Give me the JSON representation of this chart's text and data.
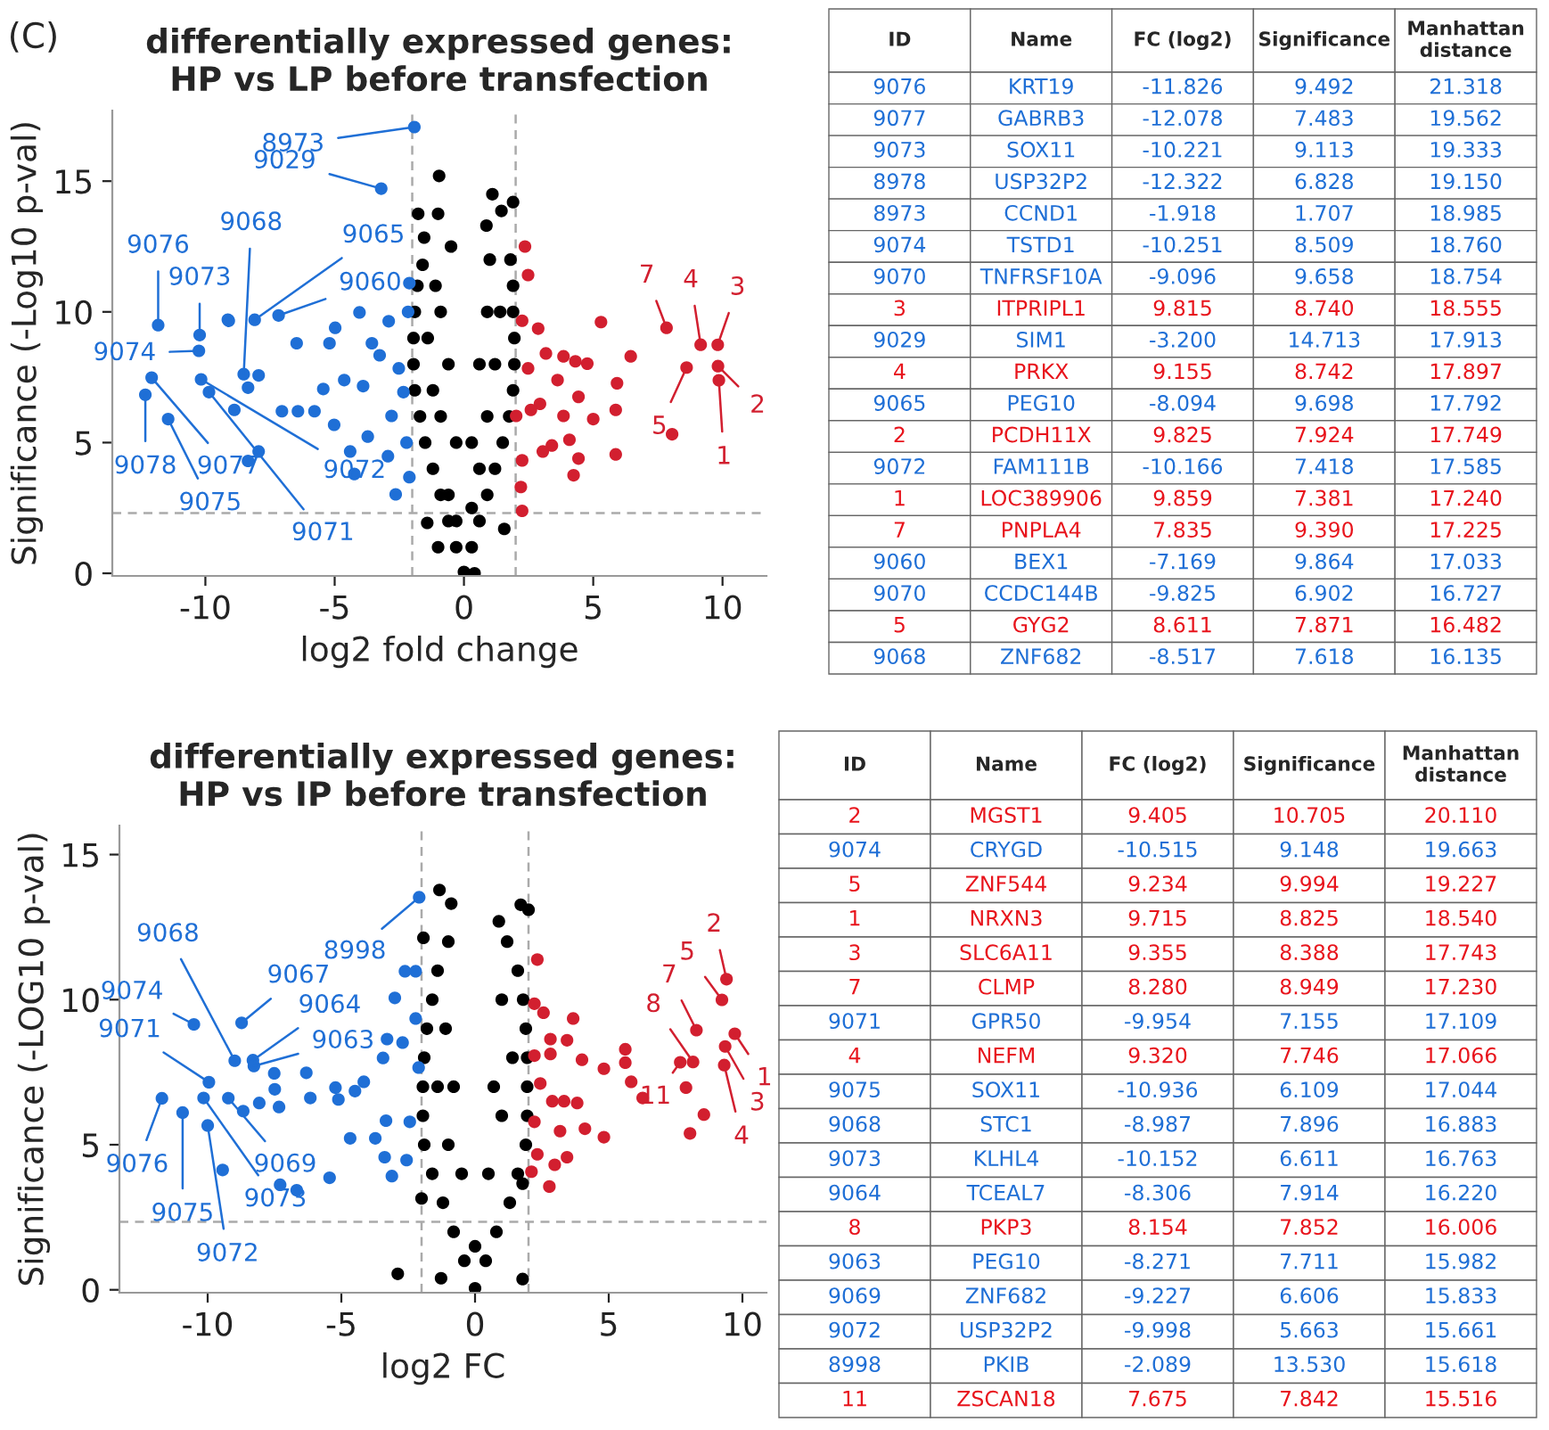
{
  "chart_data": [
    {
      "type": "scatter",
      "title": "differentially expressed genes:\nHP vs LP before transfection",
      "xlabel": "log2 fold change",
      "ylabel": "Significance (-Log10 p-val)",
      "xlim": [
        -13.6,
        11.7
      ],
      "ylim": [
        -0.1,
        17.7
      ],
      "xticks": [
        -10,
        -5,
        0,
        5,
        10
      ],
      "yticks": [
        0,
        5,
        10,
        15
      ],
      "marker": "circle",
      "grid": false,
      "legend": false,
      "ref_lines": [
        {
          "axis": "x",
          "value": -2,
          "color": "#aaaaaa",
          "line_style": "dashed"
        },
        {
          "axis": "x",
          "value": 2,
          "color": "#aaaaaa",
          "line_style": "dashed"
        },
        {
          "axis": "y",
          "value": 2.3,
          "color": "#aaaaaa",
          "line_style": "dashed"
        }
      ],
      "series": [
        {
          "color": "#1f6fd6",
          "x": [
            -11.826,
            -12.078,
            -10.221,
            -12.322,
            -1.918,
            -10.251,
            -9.096,
            -3.2,
            -8.094,
            -10.166,
            -7.169,
            -9.86,
            -8.517,
            -11.44,
            -8.35,
            -9.13,
            -8.35,
            -8.88,
            -7.94,
            -7.94,
            -7.04,
            -6.47,
            -6.42,
            -5.78,
            -5.44,
            -5.2,
            -4.98,
            -5.02,
            -4.63,
            -4.4,
            -4.24,
            -4.04,
            -3.9,
            -3.72,
            -3.56,
            -3.26,
            -2.91,
            -2.94,
            -2.64,
            -2.8,
            -2.52,
            -2.11,
            -2.16,
            -2.11,
            -2.22,
            -2.34
          ],
          "values": [
            9.492,
            7.483,
            9.113,
            6.828,
            17.07,
            8.509,
            9.658,
            14.713,
            9.698,
            7.418,
            9.864,
            6.93,
            7.618,
            5.9,
            4.3,
            9.7,
            7.1,
            6.25,
            7.57,
            4.66,
            6.2,
            8.8,
            6.2,
            6.2,
            7.05,
            8.8,
            9.39,
            5.68,
            7.39,
            4.66,
            3.8,
            9.98,
            7.16,
            5.23,
            8.8,
            8.34,
            9.64,
            4.48,
            3.02,
            6.02,
            7.84,
            11.1,
            10.0,
            3.68,
            5.0,
            6.93
          ]
        },
        {
          "color": "#d21f2f",
          "x": [
            7.835,
            9.155,
            9.815,
            8.611,
            9.825,
            9.859,
            5.3,
            6.45,
            5.92,
            5.87,
            5.87,
            8.05,
            5.0,
            4.77,
            4.31,
            3.85,
            4.43,
            4.08,
            4.43,
            4.24,
            3.17,
            2.87,
            2.48,
            2.36,
            2.25,
            2.48,
            2.94,
            3.4,
            3.05,
            2.25,
            2.2,
            2.25,
            3.62,
            2.02,
            2.59,
            3.85
          ],
          "values": [
            9.39,
            8.742,
            8.74,
            7.871,
            7.924,
            7.381,
            9.61,
            8.3,
            7.27,
            6.25,
            4.55,
            5.32,
            5.9,
            8.02,
            8.11,
            8.3,
            6.75,
            5.11,
            4.39,
            3.75,
            8.41,
            9.36,
            11.41,
            12.5,
            9.66,
            7.84,
            6.48,
            4.89,
            4.66,
            4.32,
            3.3,
            2.39,
            7.39,
            6.02,
            6.25,
            6.02
          ]
        },
        {
          "color": "#000000",
          "x": [
            0,
            -0.3,
            0.3,
            -0.6,
            0.6,
            -0.9,
            0.9,
            -1.2,
            1.2,
            -1.5,
            1.5,
            -1.7,
            1.75,
            -1.9,
            1.9,
            -1.95,
            1.95,
            -1.95,
            1.95,
            -1.9,
            1.9,
            -1.8,
            1.9,
            -1.6,
            1.8,
            -0.6,
            0.6,
            -0.3,
            0.3,
            -0.6,
            0.6,
            -0.9,
            0.9,
            -1.1,
            1.0,
            -1.2,
            -0.9,
            1.2,
            1.4,
            -1.4,
            0.9,
            -0.3,
            0.3,
            -1.0,
            -0.96,
            -1.77,
            -1.0,
            -1.54,
            -0.5,
            1.1,
            1.9,
            1.45,
            0.87,
            1.56,
            -1.42,
            0.41
          ],
          "values": [
            0.05,
            1,
            1,
            2,
            2,
            3,
            3,
            4,
            4,
            5,
            5,
            6,
            6,
            7,
            7,
            8,
            8,
            9,
            9,
            10,
            10,
            11,
            11,
            11.8,
            12,
            3,
            4,
            5,
            5,
            8,
            8,
            10,
            10,
            11,
            12,
            7,
            6,
            8,
            10,
            9,
            6,
            2,
            2.5,
            1.0,
            15.2,
            13.75,
            13.75,
            12.84,
            12.5,
            14.5,
            14.2,
            13.86,
            13.3,
            1.7,
            1.93,
            0.0
          ]
        }
      ],
      "annotations": [
        "(C)",
        {
          "text": "8973",
          "x": -1.918,
          "y": 17.07
        },
        {
          "text": "9029",
          "x": -3.2,
          "y": 14.713
        },
        {
          "text": "9065",
          "x": -8.094,
          "y": 9.698
        },
        {
          "text": "9060",
          "x": -7.169,
          "y": 9.864
        },
        {
          "text": "9076",
          "x": -11.826,
          "y": 9.492
        },
        {
          "text": "9073",
          "x": -10.221,
          "y": 9.113
        },
        {
          "text": "9074",
          "x": -10.251,
          "y": 8.509
        },
        {
          "text": "9068",
          "x": -8.517,
          "y": 7.618
        },
        {
          "text": "9078",
          "x": -12.322,
          "y": 6.828
        },
        {
          "text": "9077",
          "x": -12.078,
          "y": 7.483
        },
        {
          "text": "9075",
          "x": -11.44,
          "y": 5.9
        },
        {
          "text": "9072",
          "x": -10.166,
          "y": 7.418
        },
        {
          "text": "9071",
          "x": -9.86,
          "y": 6.93
        },
        {
          "text": "7",
          "x": 7.835,
          "y": 9.39
        },
        {
          "text": "4",
          "x": 9.155,
          "y": 8.742
        },
        {
          "text": "3",
          "x": 9.815,
          "y": 8.74
        },
        {
          "text": "5",
          "x": 8.611,
          "y": 7.871
        },
        {
          "text": "2",
          "x": 9.825,
          "y": 7.924
        },
        {
          "text": "1",
          "x": 9.859,
          "y": 7.381
        }
      ]
    },
    {
      "type": "other",
      "categories": [
        "ID",
        "Name",
        "FC (log2)",
        "Significance",
        "Manhattan\ndistance"
      ],
      "colors": [
        [
          "#1f6fd6",
          "#1f6fd6",
          "#1f6fd6",
          "#1f6fd6",
          "#1f6fd6"
        ],
        [
          "#1f6fd6",
          "#1f6fd6",
          "#1f6fd6",
          "#1f6fd6",
          "#1f6fd6"
        ],
        [
          "#1f6fd6",
          "#1f6fd6",
          "#1f6fd6",
          "#1f6fd6",
          "#1f6fd6"
        ],
        [
          "#1f6fd6",
          "#1f6fd6",
          "#1f6fd6",
          "#1f6fd6",
          "#1f6fd6"
        ],
        [
          "#1f6fd6",
          "#1f6fd6",
          "#1f6fd6",
          "#1f6fd6",
          "#1f6fd6"
        ],
        [
          "#1f6fd6",
          "#1f6fd6",
          "#1f6fd6",
          "#1f6fd6",
          "#1f6fd6"
        ],
        [
          "#1f6fd6",
          "#1f6fd6",
          "#1f6fd6",
          "#1f6fd6",
          "#1f6fd6"
        ],
        [
          "#e8141c",
          "#e8141c",
          "#e8141c",
          "#e8141c",
          "#e8141c"
        ],
        [
          "#1f6fd6",
          "#1f6fd6",
          "#1f6fd6",
          "#1f6fd6",
          "#1f6fd6"
        ],
        [
          "#e8141c",
          "#e8141c",
          "#e8141c",
          "#e8141c",
          "#e8141c"
        ],
        [
          "#1f6fd6",
          "#1f6fd6",
          "#1f6fd6",
          "#1f6fd6",
          "#1f6fd6"
        ],
        [
          "#e8141c",
          "#e8141c",
          "#e8141c",
          "#e8141c",
          "#e8141c"
        ],
        [
          "#1f6fd6",
          "#1f6fd6",
          "#1f6fd6",
          "#1f6fd6",
          "#1f6fd6"
        ],
        [
          "#e8141c",
          "#e8141c",
          "#e8141c",
          "#e8141c",
          "#e8141c"
        ],
        [
          "#e8141c",
          "#e8141c",
          "#e8141c",
          "#e8141c",
          "#e8141c"
        ],
        [
          "#1f6fd6",
          "#1f6fd6",
          "#1f6fd6",
          "#1f6fd6",
          "#1f6fd6"
        ],
        [
          "#1f6fd6",
          "#1f6fd6",
          "#1f6fd6",
          "#1f6fd6",
          "#1f6fd6"
        ],
        [
          "#e8141c",
          "#e8141c",
          "#e8141c",
          "#e8141c",
          "#e8141c"
        ],
        [
          "#1f6fd6",
          "#1f6fd6",
          "#1f6fd6",
          "#1f6fd6",
          "#1f6fd6"
        ]
      ],
      "cell_labels": [
        [
          "9076",
          "KRT19",
          "-11.826",
          "9.492",
          "21.318"
        ],
        [
          "9077",
          "GABRB3",
          "-12.078",
          "7.483",
          "19.562"
        ],
        [
          "9073",
          "SOX11",
          "-10.221",
          "9.113",
          "19.333"
        ],
        [
          "8978",
          "USP32P2",
          "-12.322",
          "6.828",
          "19.150"
        ],
        [
          "8973",
          "CCND1",
          "-1.918",
          "1.707",
          "18.985"
        ],
        [
          "9074",
          "TSTD1",
          "-10.251",
          "8.509",
          "18.760"
        ],
        [
          "9070",
          "TNFRSF10A",
          "-9.096",
          "9.658",
          "18.754"
        ],
        [
          "3",
          "ITPRIPL1",
          "9.815",
          "8.740",
          "18.555"
        ],
        [
          "9029",
          "SIM1",
          "-3.200",
          "14.713",
          "17.913"
        ],
        [
          "4",
          "PRKX",
          "9.155",
          "8.742",
          "17.897"
        ],
        [
          "9065",
          "PEG10",
          "-8.094",
          "9.698",
          "17.792"
        ],
        [
          "2",
          "PCDH11X",
          "9.825",
          "7.924",
          "17.749"
        ],
        [
          "9072",
          "FAM111B",
          "-10.166",
          "7.418",
          "17.585"
        ],
        [
          "1",
          "LOC389906",
          "9.859",
          "7.381",
          "17.240"
        ],
        [
          "7",
          "PNPLA4",
          "7.835",
          "9.390",
          "17.225"
        ],
        [
          "9060",
          "BEX1",
          "-7.169",
          "9.864",
          "17.033"
        ],
        [
          "9070",
          "CCDC144B",
          "-9.825",
          "6.902",
          "16.727"
        ],
        [
          "5",
          "GYG2",
          "8.611",
          "7.871",
          "16.482"
        ],
        [
          "9068",
          "ZNF682",
          "-8.517",
          "7.618",
          "16.135"
        ]
      ]
    },
    {
      "type": "scatter",
      "title": "differentially expressed genes:\nHP vs IP before transfection",
      "xlabel": "log2 FC",
      "ylabel": "Significance (-LOG10 p-val)",
      "xlim": [
        -13.3,
        10.9
      ],
      "ylim": [
        -0.1,
        16
      ],
      "xticks": [
        -10,
        -5,
        0,
        5,
        10
      ],
      "yticks": [
        0,
        5,
        10,
        15
      ],
      "marker": "circle",
      "grid": false,
      "legend": false,
      "ref_lines": [
        {
          "axis": "x",
          "value": -2,
          "color": "#aaaaaa",
          "line_style": "dashed"
        },
        {
          "axis": "x",
          "value": 2,
          "color": "#aaaaaa",
          "line_style": "dashed"
        },
        {
          "axis": "y",
          "value": 2.34,
          "color": "#aaaaaa",
          "line_style": "dashed"
        }
      ],
      "series": [
        {
          "color": "#1f6fd6",
          "x": [
            -2.089,
            -8.987,
            -8.73,
            -10.515,
            -8.306,
            -8.271,
            -9.954,
            -11.71,
            -9.227,
            -10.152,
            -10.936,
            -9.998,
            -9.44,
            -8.67,
            -8.07,
            -7.51,
            -7.49,
            -7.33,
            -7.29,
            -6.67,
            -6.31,
            -6.16,
            -5.44,
            -5.22,
            -5.11,
            -4.67,
            -4.49,
            -4.16,
            -3.73,
            -3.44,
            -3.33,
            -3.29,
            -3.11,
            -3.0,
            -2.71,
            -2.62,
            -2.44,
            -2.22,
            -2.22,
            -2.11,
            -2.56,
            -3.38
          ],
          "values": [
            13.53,
            7.896,
            9.2,
            9.148,
            7.914,
            7.711,
            7.155,
            6.6,
            6.606,
            6.611,
            6.109,
            5.663,
            4.13,
            6.16,
            6.44,
            7.46,
            6.91,
            6.3,
            3.62,
            3.43,
            7.48,
            6.61,
            3.86,
            6.97,
            6.56,
            5.22,
            6.85,
            7.17,
            5.22,
            7.99,
            5.83,
            8.64,
            3.92,
            10.06,
            8.52,
            10.98,
            5.79,
            10.98,
            9.35,
            7.66,
            4.47,
            4.57
          ]
        },
        {
          "color": "#d21f2f",
          "x": [
            9.405,
            9.234,
            9.715,
            9.355,
            8.28,
            9.32,
            8.154,
            7.675,
            3.67,
            5.62,
            5.62,
            5.84,
            6.27,
            4.82,
            4.82,
            7.89,
            8.04,
            8.56,
            4.0,
            3.44,
            2.82,
            2.82,
            2.33,
            2.22,
            2.56,
            2.22,
            2.44,
            2.89,
            3.33,
            3.82,
            4.11,
            3.18,
            3.44,
            2.98,
            2.78,
            2.11,
            2.22,
            2.33
          ],
          "values": [
            10.705,
            9.994,
            8.825,
            8.388,
            8.949,
            7.746,
            7.852,
            7.842,
            9.35,
            8.29,
            7.83,
            7.17,
            6.61,
            7.62,
            5.26,
            6.97,
            5.39,
            6.04,
            7.93,
            8.6,
            8.64,
            8.13,
            11.38,
            9.86,
            9.55,
            8.07,
            7.11,
            6.5,
            6.5,
            6.44,
            5.55,
            5.47,
            4.57,
            4.31,
            3.56,
            4.07,
            5.79,
            4.67
          ]
        },
        {
          "color": "#000000",
          "x": [
            0,
            -0.4,
            0.4,
            -0.8,
            0.8,
            -1.2,
            1.3,
            -1.6,
            1.6,
            -1.9,
            1.9,
            -1.95,
            1.95,
            -1.95,
            1.95,
            -1.9,
            1.95,
            -1.8,
            1.9,
            -1.6,
            1.8,
            -1.4,
            1.6,
            -1.0,
            1.2,
            -0.5,
            0.5,
            -0.8,
            0.7,
            -1.1,
            1.0,
            -1.0,
            1.0,
            -1.4,
            1.4,
            0,
            -1.33,
            -0.89,
            -1.93,
            1.71,
            2.0,
            0.89,
            1.78,
            -2.89,
            -1.27,
            -2.0,
            1.78
          ],
          "values": [
            0.05,
            1,
            1,
            2,
            2,
            3,
            3,
            4,
            4,
            5,
            5,
            6,
            6,
            7,
            7,
            8,
            8,
            9,
            9,
            10,
            10,
            11,
            11,
            12,
            12,
            4,
            4,
            7,
            7,
            9,
            10,
            5,
            6,
            7,
            8,
            1.5,
            13.78,
            13.31,
            12.13,
            13.27,
            13.1,
            12.7,
            0.37,
            0.55,
            0.4,
            3.15,
            3.66
          ]
        }
      ],
      "annotations": [
        {
          "text": "8998",
          "x": -2.089,
          "y": 13.53
        },
        {
          "text": "9068",
          "x": -8.987,
          "y": 7.896
        },
        {
          "text": "9067",
          "x": -8.73,
          "y": 9.2
        },
        {
          "text": "9074",
          "x": -10.515,
          "y": 9.148
        },
        {
          "text": "9064",
          "x": -8.306,
          "y": 7.914
        },
        {
          "text": "9063",
          "x": -8.271,
          "y": 7.711
        },
        {
          "text": "9071",
          "x": -9.954,
          "y": 7.155
        },
        {
          "text": "9076",
          "x": -11.71,
          "y": 6.6
        },
        {
          "text": "9069",
          "x": -9.227,
          "y": 6.606
        },
        {
          "text": "9073",
          "x": -10.152,
          "y": 6.611
        },
        {
          "text": "9075",
          "x": -10.936,
          "y": 6.109
        },
        {
          "text": "9072",
          "x": -9.998,
          "y": 5.663
        },
        {
          "text": "2",
          "x": 9.405,
          "y": 10.705
        },
        {
          "text": "5",
          "x": 9.234,
          "y": 9.994
        },
        {
          "text": "7",
          "x": 8.28,
          "y": 8.949
        },
        {
          "text": "8",
          "x": 8.154,
          "y": 7.852
        },
        {
          "text": "11",
          "x": 7.675,
          "y": 7.842
        },
        {
          "text": "1",
          "x": 9.715,
          "y": 8.825
        },
        {
          "text": "3",
          "x": 9.355,
          "y": 8.388
        },
        {
          "text": "4",
          "x": 9.32,
          "y": 7.746
        }
      ]
    },
    {
      "type": "other",
      "categories": [
        "ID",
        "Name",
        "FC (log2)",
        "Significance",
        "Manhattan\ndistance"
      ],
      "colors": [
        [
          "#e8141c",
          "#e8141c",
          "#e8141c",
          "#e8141c",
          "#e8141c"
        ],
        [
          "#1f6fd6",
          "#1f6fd6",
          "#1f6fd6",
          "#1f6fd6",
          "#1f6fd6"
        ],
        [
          "#e8141c",
          "#e8141c",
          "#e8141c",
          "#e8141c",
          "#e8141c"
        ],
        [
          "#e8141c",
          "#e8141c",
          "#e8141c",
          "#e8141c",
          "#e8141c"
        ],
        [
          "#e8141c",
          "#e8141c",
          "#e8141c",
          "#e8141c",
          "#e8141c"
        ],
        [
          "#e8141c",
          "#e8141c",
          "#e8141c",
          "#e8141c",
          "#e8141c"
        ],
        [
          "#1f6fd6",
          "#1f6fd6",
          "#1f6fd6",
          "#1f6fd6",
          "#1f6fd6"
        ],
        [
          "#e8141c",
          "#e8141c",
          "#e8141c",
          "#e8141c",
          "#e8141c"
        ],
        [
          "#1f6fd6",
          "#1f6fd6",
          "#1f6fd6",
          "#1f6fd6",
          "#1f6fd6"
        ],
        [
          "#1f6fd6",
          "#1f6fd6",
          "#1f6fd6",
          "#1f6fd6",
          "#1f6fd6"
        ],
        [
          "#1f6fd6",
          "#1f6fd6",
          "#1f6fd6",
          "#1f6fd6",
          "#1f6fd6"
        ],
        [
          "#1f6fd6",
          "#1f6fd6",
          "#1f6fd6",
          "#1f6fd6",
          "#1f6fd6"
        ],
        [
          "#e8141c",
          "#e8141c",
          "#e8141c",
          "#e8141c",
          "#e8141c"
        ],
        [
          "#1f6fd6",
          "#1f6fd6",
          "#1f6fd6",
          "#1f6fd6",
          "#1f6fd6"
        ],
        [
          "#1f6fd6",
          "#1f6fd6",
          "#1f6fd6",
          "#1f6fd6",
          "#1f6fd6"
        ],
        [
          "#1f6fd6",
          "#1f6fd6",
          "#1f6fd6",
          "#1f6fd6",
          "#1f6fd6"
        ],
        [
          "#1f6fd6",
          "#1f6fd6",
          "#1f6fd6",
          "#1f6fd6",
          "#1f6fd6"
        ],
        [
          "#e8141c",
          "#e8141c",
          "#e8141c",
          "#e8141c",
          "#e8141c"
        ]
      ],
      "cell_labels": [
        [
          "2",
          "MGST1",
          "9.405",
          "10.705",
          "20.110"
        ],
        [
          "9074",
          "CRYGD",
          "-10.515",
          "9.148",
          "19.663"
        ],
        [
          "5",
          "ZNF544",
          "9.234",
          "9.994",
          "19.227"
        ],
        [
          "1",
          "NRXN3",
          "9.715",
          "8.825",
          "18.540"
        ],
        [
          "3",
          "SLC6A11",
          "9.355",
          "8.388",
          "17.743"
        ],
        [
          "7",
          "CLMP",
          "8.280",
          "8.949",
          "17.230"
        ],
        [
          "9071",
          "GPR50",
          "-9.954",
          "7.155",
          "17.109"
        ],
        [
          "4",
          "NEFM",
          "9.320",
          "7.746",
          "17.066"
        ],
        [
          "9075",
          "SOX11",
          "-10.936",
          "6.109",
          "17.044"
        ],
        [
          "9068",
          "STC1",
          "-8.987",
          "7.896",
          "16.883"
        ],
        [
          "9073",
          "KLHL4",
          "-10.152",
          "6.611",
          "16.763"
        ],
        [
          "9064",
          "TCEAL7",
          "-8.306",
          "7.914",
          "16.220"
        ],
        [
          "8",
          "PKP3",
          "8.154",
          "7.852",
          "16.006"
        ],
        [
          "9063",
          "PEG10",
          "-8.271",
          "7.711",
          "15.982"
        ],
        [
          "9069",
          "ZNF682",
          "-9.227",
          "6.606",
          "15.833"
        ],
        [
          "9072",
          "USP32P2",
          "-9.998",
          "5.663",
          "15.661"
        ],
        [
          "8998",
          "PKIB",
          "-2.089",
          "13.530",
          "15.618"
        ],
        [
          "11",
          "ZSCAN18",
          "7.675",
          "7.842",
          "15.516"
        ]
      ]
    }
  ]
}
